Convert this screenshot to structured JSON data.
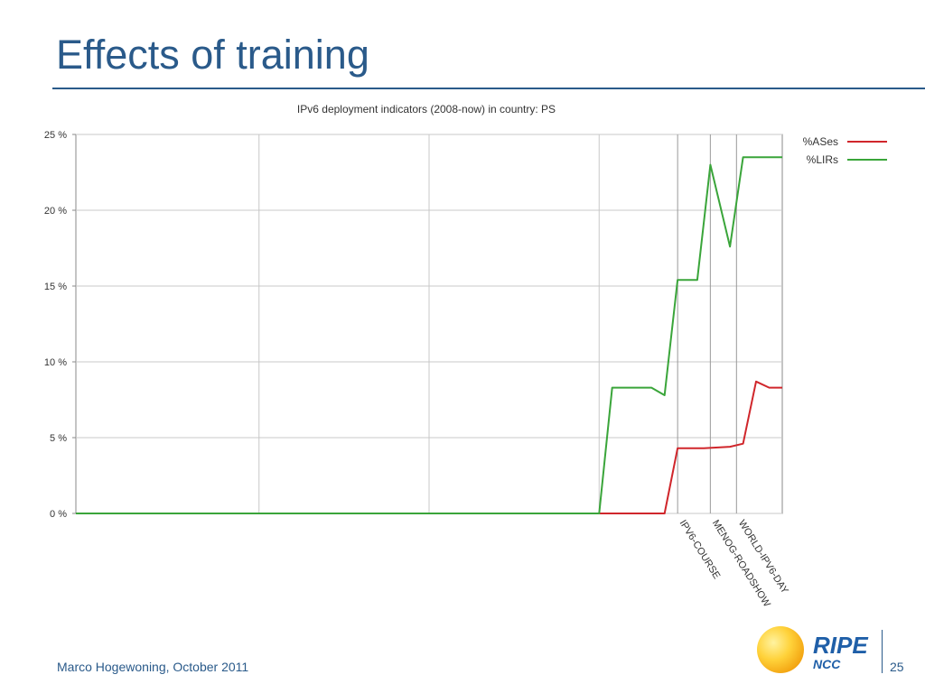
{
  "slide": {
    "title": "Effects of training",
    "footer": "Marco Hogewoning, October 2011",
    "page_number": "25",
    "logo": {
      "name": "ripe-ncc-logo",
      "text_main": "RIPE",
      "text_sub": "NCC"
    }
  },
  "colors": {
    "title": "#2a5a8a",
    "asns": "#d0262b",
    "lirs": "#3aa53a",
    "grid": "#c8c8c8",
    "event_line": "#999999"
  },
  "chart_data": {
    "type": "line",
    "title": "IPv6 deployment indicators (2008-now) in country: PS",
    "xlabel": "",
    "ylabel": "",
    "ylim": [
      0,
      25
    ],
    "y_ticks": [
      {
        "value": 0,
        "label": "0 %"
      },
      {
        "value": 5,
        "label": "5 %"
      },
      {
        "value": 10,
        "label": "10 %"
      },
      {
        "value": 15,
        "label": "15 %"
      },
      {
        "value": 20,
        "label": "20 %"
      },
      {
        "value": 25,
        "label": "25 %"
      }
    ],
    "x_index_range": [
      0,
      53
    ],
    "grid": true,
    "legend_placement": "top-right",
    "series": [
      {
        "name": "%ASes",
        "color": "#d0262b",
        "points": [
          [
            0,
            0
          ],
          [
            40,
            0
          ],
          [
            45,
            0
          ],
          [
            46,
            4.3
          ],
          [
            48,
            4.3
          ],
          [
            50,
            4.4
          ],
          [
            51,
            4.6
          ],
          [
            52,
            8.7
          ],
          [
            53,
            8.3
          ],
          [
            54,
            8.3
          ]
        ]
      },
      {
        "name": "%LIRs",
        "color": "#3aa53a",
        "points": [
          [
            0,
            0
          ],
          [
            40,
            0
          ],
          [
            41,
            8.3
          ],
          [
            44,
            8.3
          ],
          [
            45,
            7.8
          ],
          [
            46,
            15.4
          ],
          [
            47.5,
            15.4
          ],
          [
            48.5,
            23.0
          ],
          [
            50,
            17.6
          ],
          [
            51,
            23.5
          ],
          [
            54,
            23.5
          ]
        ]
      }
    ],
    "events": [
      {
        "x": 46,
        "label": "IPV6-COURSE"
      },
      {
        "x": 48.5,
        "label": "MENOG-ROADSHOW"
      },
      {
        "x": 50.5,
        "label": "WORLD-IPV6-DAY"
      }
    ]
  }
}
